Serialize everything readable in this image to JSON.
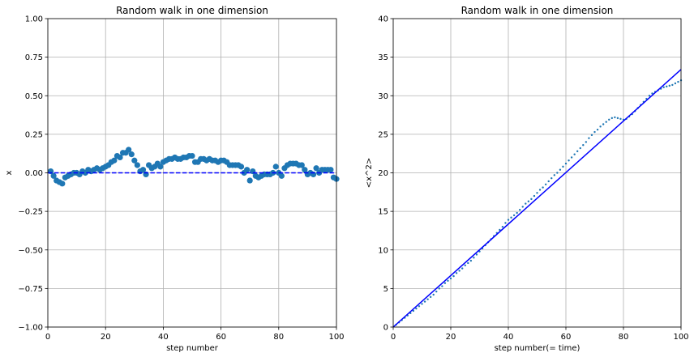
{
  "chart_data": [
    {
      "type": "scatter",
      "title": "Random walk in one dimension",
      "xlabel": "step number",
      "ylabel": "x",
      "xlim": [
        0,
        100
      ],
      "ylim": [
        -1.0,
        1.0
      ],
      "xticks": [
        0,
        20,
        40,
        60,
        80,
        100
      ],
      "yticks": [
        -1.0,
        -0.75,
        -0.5,
        -0.25,
        0.0,
        0.25,
        0.5,
        0.75,
        1.0
      ],
      "xtick_labels": [
        "0",
        "20",
        "40",
        "60",
        "80",
        "100"
      ],
      "ytick_labels": [
        "−1.00",
        "−0.75",
        "−0.50",
        "−0.25",
        "0.00",
        "0.25",
        "0.50",
        "0.75",
        "1.00"
      ],
      "grid": true,
      "series": [
        {
          "style": "scatter",
          "color": "#1f77b4",
          "x": [
            1,
            2,
            3,
            4,
            5,
            6,
            7,
            8,
            9,
            10,
            11,
            12,
            13,
            14,
            15,
            16,
            17,
            18,
            19,
            20,
            21,
            22,
            23,
            24,
            25,
            26,
            27,
            28,
            29,
            30,
            31,
            32,
            33,
            34,
            35,
            36,
            37,
            38,
            39,
            40,
            41,
            42,
            43,
            44,
            45,
            46,
            47,
            48,
            49,
            50,
            51,
            52,
            53,
            54,
            55,
            56,
            57,
            58,
            59,
            60,
            61,
            62,
            63,
            64,
            65,
            66,
            67,
            68,
            69,
            70,
            71,
            72,
            73,
            74,
            75,
            76,
            77,
            78,
            79,
            80,
            81,
            82,
            83,
            84,
            85,
            86,
            87,
            88,
            89,
            90,
            91,
            92,
            93,
            94,
            95,
            96,
            97,
            98,
            99,
            100
          ],
          "y": [
            0.01,
            -0.02,
            -0.05,
            -0.06,
            -0.07,
            -0.03,
            -0.02,
            -0.01,
            0.0,
            0.0,
            -0.01,
            0.01,
            0.0,
            0.02,
            0.01,
            0.02,
            0.03,
            0.02,
            0.03,
            0.04,
            0.05,
            0.07,
            0.08,
            0.11,
            0.1,
            0.13,
            0.13,
            0.15,
            0.12,
            0.08,
            0.05,
            0.01,
            0.02,
            -0.01,
            0.05,
            0.03,
            0.04,
            0.06,
            0.04,
            0.07,
            0.08,
            0.09,
            0.09,
            0.1,
            0.09,
            0.09,
            0.1,
            0.1,
            0.11,
            0.11,
            0.07,
            0.07,
            0.09,
            0.09,
            0.08,
            0.09,
            0.08,
            0.08,
            0.07,
            0.08,
            0.08,
            0.07,
            0.05,
            0.05,
            0.05,
            0.05,
            0.04,
            0.0,
            0.02,
            -0.05,
            0.01,
            -0.02,
            -0.03,
            -0.02,
            -0.01,
            -0.01,
            -0.01,
            0.0,
            0.04,
            0.0,
            -0.02,
            0.03,
            0.05,
            0.06,
            0.06,
            0.06,
            0.05,
            0.05,
            0.02,
            -0.01,
            0.0,
            -0.01,
            0.03,
            0.0,
            0.02,
            0.02,
            0.02,
            0.02,
            -0.03,
            -0.04
          ]
        },
        {
          "style": "dashed-line",
          "color": "#0000ff",
          "x": [
            0,
            100
          ],
          "y": [
            0,
            0
          ]
        }
      ]
    },
    {
      "type": "line",
      "title": "Random walk in one dimension",
      "xlabel": "step number(= time)",
      "ylabel": "<x^2>",
      "xlim": [
        0,
        100
      ],
      "ylim": [
        0,
        40
      ],
      "xticks": [
        0,
        20,
        40,
        60,
        80,
        100
      ],
      "yticks": [
        0,
        5,
        10,
        15,
        20,
        25,
        30,
        35,
        40
      ],
      "xtick_labels": [
        "0",
        "20",
        "40",
        "60",
        "80",
        "100"
      ],
      "ytick_labels": [
        "0",
        "5",
        "10",
        "15",
        "20",
        "25",
        "30",
        "35",
        "40"
      ],
      "grid": true,
      "series": [
        {
          "style": "dotted-scatter",
          "color": "#1f77b4",
          "x": [
            1,
            2,
            3,
            4,
            5,
            6,
            7,
            8,
            9,
            10,
            11,
            12,
            13,
            14,
            15,
            16,
            17,
            18,
            19,
            20,
            21,
            22,
            23,
            24,
            25,
            26,
            27,
            28,
            29,
            30,
            31,
            32,
            33,
            34,
            35,
            36,
            37,
            38,
            39,
            40,
            41,
            42,
            43,
            44,
            45,
            46,
            47,
            48,
            49,
            50,
            51,
            52,
            53,
            54,
            55,
            56,
            57,
            58,
            59,
            60,
            61,
            62,
            63,
            64,
            65,
            66,
            67,
            68,
            69,
            70,
            71,
            72,
            73,
            74,
            75,
            76,
            77,
            78,
            79,
            80,
            81,
            82,
            83,
            84,
            85,
            86,
            87,
            88,
            89,
            90,
            91,
            92,
            93,
            94,
            95,
            96,
            97,
            98,
            99,
            100
          ],
          "y": [
            0.3,
            0.6,
            0.9,
            1.2,
            1.5,
            1.8,
            2.1,
            2.4,
            2.7,
            3.0,
            3.3,
            3.6,
            3.9,
            4.2,
            4.6,
            5.0,
            5.3,
            5.7,
            6.0,
            6.3,
            6.6,
            7.0,
            7.3,
            7.6,
            8.0,
            8.3,
            8.6,
            9.0,
            9.4,
            9.8,
            10.2,
            10.6,
            11.0,
            11.4,
            11.8,
            12.2,
            12.6,
            13.0,
            13.5,
            13.9,
            14.2,
            14.5,
            14.8,
            15.2,
            15.6,
            16.0,
            16.3,
            16.6,
            17.0,
            17.4,
            17.8,
            18.1,
            18.5,
            18.9,
            19.3,
            19.7,
            20.0,
            20.4,
            20.8,
            21.2,
            21.6,
            22.0,
            22.4,
            22.8,
            23.2,
            23.6,
            24.0,
            24.5,
            24.9,
            25.3,
            25.6,
            26.0,
            26.3,
            26.6,
            26.9,
            27.1,
            27.2,
            27.1,
            27.0,
            26.9,
            27.0,
            27.3,
            27.6,
            28.0,
            28.4,
            28.8,
            29.2,
            29.6,
            30.0,
            30.3,
            30.5,
            30.7,
            30.9,
            31.1,
            31.2,
            31.3,
            31.4,
            31.6,
            31.8,
            32.0
          ]
        },
        {
          "style": "solid-line",
          "color": "#0000ff",
          "x": [
            0,
            100
          ],
          "y": [
            0,
            33.4
          ]
        }
      ]
    }
  ]
}
